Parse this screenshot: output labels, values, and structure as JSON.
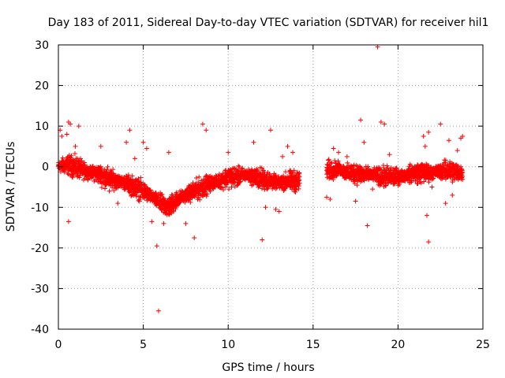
{
  "chart_data": {
    "type": "scatter",
    "title": "Day 183 of 2011, Sidereal Day-to-day VTEC variation (SDTVAR) for receiver hil1",
    "xlabel": "GPS time / hours",
    "ylabel": "SDTVAR / TECUs",
    "xlim": [
      0,
      25
    ],
    "ylim": [
      -40,
      30
    ],
    "x_ticks": [
      0,
      5,
      10,
      15,
      20,
      25
    ],
    "y_ticks": [
      -40,
      -30,
      -20,
      -10,
      0,
      10,
      20,
      30
    ],
    "x_tick_labels": [
      "0",
      "5",
      "10",
      "15",
      "20",
      "25"
    ],
    "y_tick_labels": [
      "-40",
      "-30",
      "-20",
      "-10",
      "0",
      "10",
      "20",
      "30"
    ],
    "grid": true,
    "marker": "+",
    "color": "#ff0000",
    "series": [
      {
        "name": "SDTVAR",
        "trend": [
          [
            0.0,
            0.0
          ],
          [
            0.5,
            0.5
          ],
          [
            1.0,
            0.0
          ],
          [
            1.5,
            -1.0
          ],
          [
            2.0,
            -1.5
          ],
          [
            2.5,
            -2.0
          ],
          [
            3.0,
            -3.0
          ],
          [
            3.5,
            -3.5
          ],
          [
            4.0,
            -4.0
          ],
          [
            4.5,
            -5.0
          ],
          [
            5.0,
            -6.0
          ],
          [
            5.5,
            -7.5
          ],
          [
            6.0,
            -9.0
          ],
          [
            6.5,
            -10.0
          ],
          [
            7.0,
            -8.0
          ],
          [
            7.5,
            -7.0
          ],
          [
            8.0,
            -6.0
          ],
          [
            8.5,
            -5.0
          ],
          [
            9.0,
            -4.0
          ],
          [
            9.5,
            -3.5
          ],
          [
            10.0,
            -2.5
          ],
          [
            10.5,
            -2.5
          ],
          [
            11.0,
            -2.0
          ],
          [
            11.5,
            -2.5
          ],
          [
            12.0,
            -3.0
          ],
          [
            12.5,
            -3.5
          ],
          [
            13.0,
            -4.0
          ],
          [
            13.5,
            -3.5
          ],
          [
            14.2,
            -3.5
          ],
          [
            15.8,
            -1.0
          ],
          [
            16.5,
            -0.5
          ],
          [
            17.0,
            -1.5
          ],
          [
            17.5,
            -1.5
          ],
          [
            18.0,
            -2.0
          ],
          [
            18.5,
            -2.0
          ],
          [
            19.0,
            -2.5
          ],
          [
            19.5,
            -2.5
          ],
          [
            20.0,
            -2.5
          ],
          [
            20.5,
            -2.0
          ],
          [
            21.0,
            -1.5
          ],
          [
            21.5,
            -1.5
          ],
          [
            22.0,
            -1.5
          ],
          [
            22.5,
            -1.0
          ],
          [
            23.0,
            -1.0
          ],
          [
            23.8,
            -1.5
          ]
        ],
        "outliers": [
          [
            0.1,
            9.0
          ],
          [
            0.2,
            7.5
          ],
          [
            0.5,
            8.0
          ],
          [
            0.6,
            11.0
          ],
          [
            0.6,
            -13.5
          ],
          [
            0.7,
            10.5
          ],
          [
            1.2,
            10.0
          ],
          [
            1.0,
            5.0
          ],
          [
            2.5,
            5.0
          ],
          [
            3.0,
            -6.0
          ],
          [
            3.5,
            -9.0
          ],
          [
            4.0,
            6.0
          ],
          [
            4.2,
            9.0
          ],
          [
            4.5,
            2.0
          ],
          [
            5.0,
            6.0
          ],
          [
            5.2,
            4.5
          ],
          [
            5.5,
            -13.5
          ],
          [
            5.8,
            -19.5
          ],
          [
            5.9,
            -35.5
          ],
          [
            6.2,
            -14.0
          ],
          [
            6.5,
            3.5
          ],
          [
            7.5,
            -14.0
          ],
          [
            8.0,
            -17.5
          ],
          [
            8.5,
            10.5
          ],
          [
            8.7,
            9.0
          ],
          [
            10.0,
            3.5
          ],
          [
            11.5,
            6.0
          ],
          [
            12.0,
            -18.0
          ],
          [
            12.2,
            -10.0
          ],
          [
            12.5,
            9.0
          ],
          [
            12.8,
            -10.5
          ],
          [
            13.0,
            -11.0
          ],
          [
            13.2,
            2.5
          ],
          [
            13.5,
            5.0
          ],
          [
            13.8,
            3.5
          ],
          [
            15.8,
            -7.5
          ],
          [
            16.0,
            -8.0
          ],
          [
            16.2,
            4.5
          ],
          [
            16.5,
            3.5
          ],
          [
            17.0,
            2.5
          ],
          [
            17.5,
            -8.5
          ],
          [
            17.8,
            11.5
          ],
          [
            18.0,
            6.0
          ],
          [
            18.2,
            -14.5
          ],
          [
            18.5,
            -5.5
          ],
          [
            18.8,
            29.5
          ],
          [
            19.0,
            11.0
          ],
          [
            19.2,
            10.5
          ],
          [
            19.5,
            3.0
          ],
          [
            21.5,
            7.5
          ],
          [
            21.6,
            5.0
          ],
          [
            21.7,
            -12.0
          ],
          [
            21.8,
            8.5
          ],
          [
            21.8,
            -18.5
          ],
          [
            22.5,
            10.5
          ],
          [
            22.8,
            -9.0
          ],
          [
            23.0,
            6.5
          ],
          [
            23.5,
            4.0
          ],
          [
            23.7,
            7.0
          ],
          [
            23.8,
            7.5
          ],
          [
            23.2,
            -7.0
          ],
          [
            22.0,
            -5.0
          ]
        ]
      }
    ]
  }
}
